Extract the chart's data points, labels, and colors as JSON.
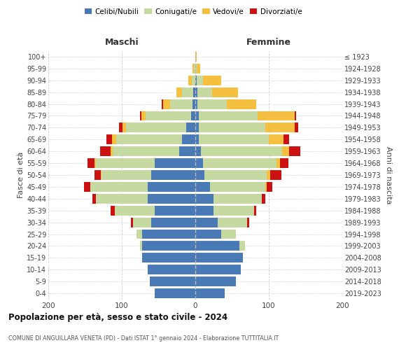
{
  "age_groups": [
    "0-4",
    "5-9",
    "10-14",
    "15-19",
    "20-24",
    "25-29",
    "30-34",
    "35-39",
    "40-44",
    "45-49",
    "50-54",
    "55-59",
    "60-64",
    "65-69",
    "70-74",
    "75-79",
    "80-84",
    "85-89",
    "90-94",
    "95-99",
    "100+"
  ],
  "birth_years": [
    "2019-2023",
    "2014-2018",
    "2009-2013",
    "2004-2008",
    "1999-2003",
    "1994-1998",
    "1989-1993",
    "1984-1988",
    "1979-1983",
    "1974-1978",
    "1969-1973",
    "1964-1968",
    "1959-1963",
    "1954-1958",
    "1949-1953",
    "1944-1948",
    "1939-1943",
    "1934-1938",
    "1929-1933",
    "1924-1928",
    "≤ 1923"
  ],
  "colors": {
    "celibi": "#4a7ab5",
    "coniugati": "#c5d9a0",
    "vedovi": "#f5c040",
    "divorziati": "#cc1111"
  },
  "maschi": {
    "celibi": [
      55,
      62,
      65,
      72,
      72,
      72,
      60,
      55,
      65,
      65,
      60,
      55,
      22,
      18,
      12,
      6,
      4,
      3,
      0,
      0,
      0
    ],
    "coniugati": [
      0,
      0,
      0,
      0,
      3,
      8,
      25,
      55,
      70,
      78,
      68,
      80,
      90,
      90,
      82,
      62,
      30,
      15,
      5,
      2,
      0
    ],
    "vedovi": [
      0,
      0,
      0,
      0,
      0,
      0,
      0,
      0,
      0,
      0,
      1,
      2,
      3,
      5,
      5,
      5,
      10,
      8,
      5,
      2,
      0
    ],
    "divorziati": [
      0,
      0,
      0,
      0,
      0,
      0,
      3,
      5,
      5,
      8,
      8,
      10,
      15,
      8,
      5,
      2,
      2,
      0,
      0,
      0,
      0
    ]
  },
  "femmine": {
    "celibi": [
      40,
      55,
      62,
      65,
      60,
      35,
      30,
      25,
      25,
      20,
      12,
      10,
      8,
      5,
      5,
      5,
      3,
      3,
      2,
      0,
      0
    ],
    "coniugati": [
      0,
      0,
      0,
      0,
      8,
      20,
      40,
      55,
      65,
      75,
      85,
      100,
      110,
      95,
      90,
      80,
      40,
      20,
      8,
      2,
      0
    ],
    "vedovi": [
      0,
      0,
      0,
      0,
      0,
      0,
      0,
      0,
      0,
      2,
      5,
      5,
      10,
      20,
      40,
      50,
      40,
      35,
      25,
      5,
      2
    ],
    "divorziati": [
      0,
      0,
      0,
      0,
      0,
      0,
      3,
      3,
      5,
      8,
      15,
      12,
      15,
      8,
      5,
      2,
      0,
      0,
      0,
      0,
      0
    ]
  },
  "title": "Popolazione per età, sesso e stato civile - 2024",
  "subtitle": "COMUNE DI ANGUILLARA VENETA (PD) - Dati ISTAT 1° gennaio 2024 - Elaborazione TUTTITALIA.IT",
  "xlabel_left": "Maschi",
  "xlabel_right": "Femmine",
  "ylabel_left": "Fasce di età",
  "ylabel_right": "Anni di nascita",
  "xlim": 200,
  "background_color": "#ffffff",
  "grid_color": "#cccccc"
}
